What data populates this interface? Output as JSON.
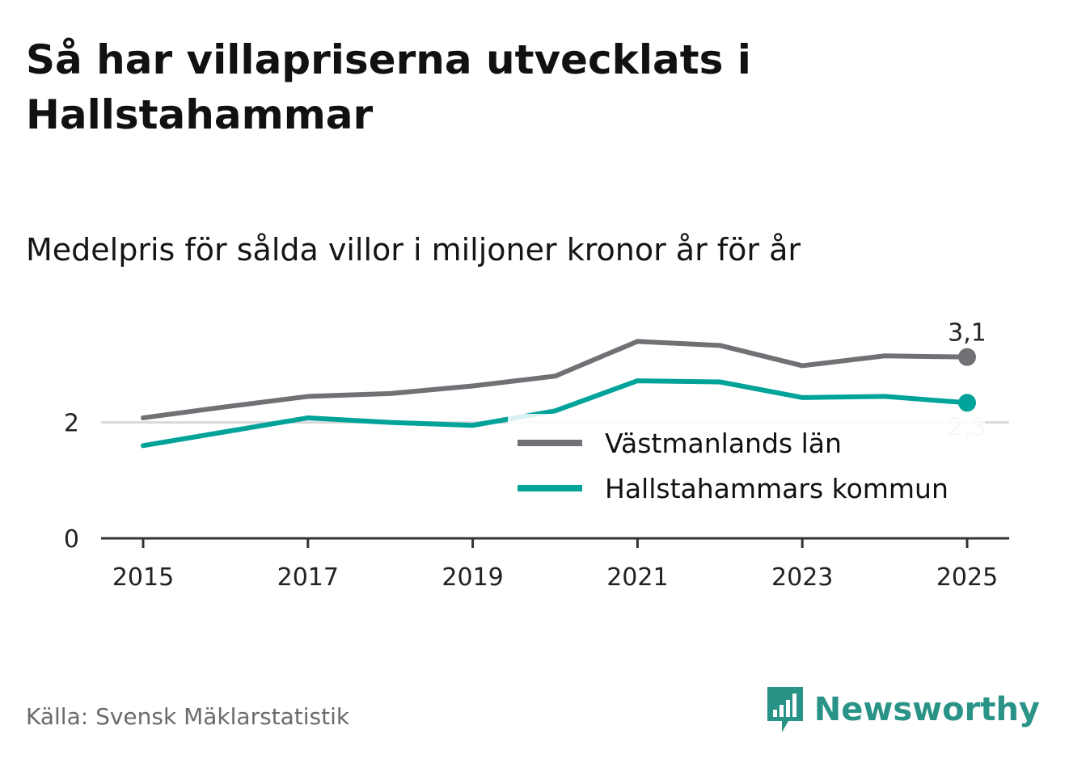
{
  "header": {
    "title": "Så har villapriserna utvecklats i Hallstahammar",
    "subtitle": "Medelpris för sålda villor i miljoner kronor år för år"
  },
  "chart_data": {
    "type": "line",
    "x": [
      2015,
      2016,
      2017,
      2018,
      2019,
      2020,
      2021,
      2022,
      2023,
      2024,
      2025
    ],
    "series": [
      {
        "name": "Västmanlands län",
        "color": "#707075",
        "values": [
          2.08,
          2.27,
          2.45,
          2.5,
          2.63,
          2.8,
          3.4,
          3.33,
          2.98,
          3.15,
          3.13
        ],
        "end_label": "3,1"
      },
      {
        "name": "Hallstahammars kommun",
        "color": "#00a39a",
        "values": [
          1.6,
          1.84,
          2.08,
          2.0,
          1.95,
          2.2,
          2.72,
          2.7,
          2.43,
          2.45,
          2.34
        ],
        "end_label": "2,3"
      }
    ],
    "xticks": [
      "2015",
      "2017",
      "2019",
      "2021",
      "2023",
      "2025"
    ],
    "yticks": [
      "0",
      "2"
    ],
    "ylim": [
      0,
      3.6
    ],
    "xlabel": "",
    "ylabel": "",
    "legend_position": "right"
  },
  "footer": {
    "source": "Källa: Svensk Mäklarstatistik",
    "brand": "Newsworthy",
    "brand_color": "#2a9387"
  }
}
